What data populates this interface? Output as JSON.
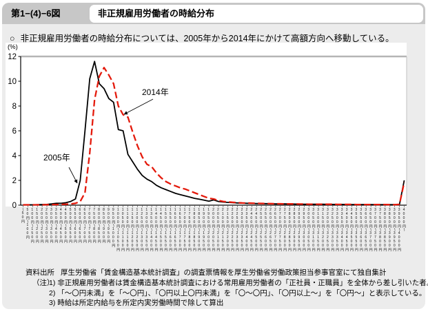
{
  "page": {
    "figure_number": "第1−(4)−6図",
    "title": "非正規雇用労働者の時給分布",
    "bullet_mark": "○",
    "summary_text": "非正規雇用労働者の時給分布については、2005年から2014年にかけて高額方向へ移動している。"
  },
  "chart_data": {
    "type": "line",
    "title": "非正規雇用労働者の時給分布",
    "ylabel": "(%)",
    "xlabel": "",
    "ylim": [
      0,
      12
    ],
    "yticks": [
      0,
      2,
      4,
      6,
      8,
      10,
      12
    ],
    "grid": "single gray line at y=12 only",
    "legend_position": "inline annotations with arrows",
    "categories": [
      "〜50円",
      "50円〜100円",
      "100円〜150円",
      "150円〜200円",
      "200円〜250円",
      "250円〜300円",
      "300円〜350円",
      "350円〜400円",
      "400円〜450円",
      "450円〜500円",
      "500円〜550円",
      "550円〜600円",
      "600円〜650円",
      "650円〜700円",
      "700円〜750円",
      "750円〜800円",
      "800円〜850円",
      "850円〜900円",
      "900円〜950円",
      "950円〜1000円",
      "1000円〜1050円",
      "1050円〜1100円",
      "1100円〜1150円",
      "1150円〜1200円",
      "1200円〜1250円",
      "1250円〜1300円",
      "1300円〜1350円",
      "1350円〜1400円",
      "1400円〜1450円",
      "1450円〜1500円",
      "1500円〜1550円",
      "1550円〜1600円",
      "1600円〜1650円",
      "1650円〜1700円",
      "1700円〜1750円",
      "1750円〜1800円",
      "1800円〜1850円",
      "1850円〜1900円",
      "1900円〜1950円",
      "1950円〜2000円",
      "2000円〜2050円",
      "2050円〜2100円",
      "2100円〜2150円",
      "2150円〜2200円",
      "2200円〜2250円",
      "2250円〜2300円",
      "2300円〜2350円",
      "2350円〜2400円",
      "2400円〜2450円",
      "2450円〜2500円",
      "2500円〜2550円",
      "2550円〜2600円",
      "2600円〜2650円",
      "2650円〜2700円",
      "2700円〜2750円",
      "2750円〜2800円",
      "2800円〜2850円",
      "2850円〜2900円",
      "2900円〜2950円",
      "2950円〜3000円",
      "3000円〜3050円",
      "3050円〜3100円",
      "3100円〜3150円",
      "3150円〜3200円",
      "3200円〜3250円",
      "3250円〜3300円",
      "3300円〜3350円",
      "3350円〜3400円",
      "3400円〜3450円",
      "3450円〜3500円",
      "3500円〜3550円",
      "3550円〜3600円",
      "3600円〜3650円",
      "3650円〜3700円",
      "3700円〜3750円",
      "3750円〜3800円",
      "3800円〜3850円",
      "3850円〜3900円",
      "3900円〜3950円",
      "3950円〜4000円",
      "4000円〜"
    ],
    "series": [
      {
        "name": "2005年",
        "color": "#000000",
        "style": "solid",
        "values": [
          0.03,
          0.03,
          0.03,
          0.04,
          0.05,
          0.06,
          0.1,
          0.15,
          0.15,
          0.2,
          0.3,
          0.5,
          2.0,
          6.0,
          10.2,
          11.6,
          9.8,
          9.4,
          8.6,
          8.3,
          6.1,
          6.0,
          4.1,
          3.5,
          2.9,
          2.4,
          2.1,
          1.9,
          1.6,
          1.4,
          1.25,
          1.1,
          0.95,
          0.85,
          0.75,
          0.65,
          0.55,
          0.48,
          0.4,
          0.32,
          0.42,
          0.3,
          0.25,
          0.22,
          0.2,
          0.18,
          0.16,
          0.15,
          0.14,
          0.13,
          0.12,
          0.12,
          0.11,
          0.1,
          0.1,
          0.1,
          0.09,
          0.09,
          0.08,
          0.08,
          0.08,
          0.07,
          0.07,
          0.07,
          0.06,
          0.06,
          0.06,
          0.06,
          0.05,
          0.05,
          0.05,
          0.05,
          0.05,
          0.05,
          0.04,
          0.04,
          0.04,
          0.04,
          0.04,
          0.05,
          2.0
        ]
      },
      {
        "name": "2014年",
        "color": "#e41a0c",
        "style": "dashed",
        "values": [
          0.03,
          0.03,
          0.03,
          0.03,
          0.03,
          0.04,
          0.05,
          0.05,
          0.06,
          0.08,
          0.1,
          0.15,
          0.3,
          1.0,
          4.2,
          8.5,
          10.4,
          11.1,
          10.5,
          9.8,
          8.0,
          7.3,
          7.1,
          5.9,
          4.8,
          3.9,
          3.3,
          3.1,
          2.6,
          2.2,
          1.9,
          1.7,
          1.55,
          1.4,
          1.3,
          1.15,
          1.0,
          0.85,
          0.7,
          0.55,
          0.5,
          0.38,
          0.3,
          0.26,
          0.23,
          0.2,
          0.18,
          0.17,
          0.16,
          0.15,
          0.14,
          0.13,
          0.12,
          0.11,
          0.11,
          0.1,
          0.1,
          0.1,
          0.09,
          0.09,
          0.08,
          0.08,
          0.08,
          0.07,
          0.07,
          0.07,
          0.06,
          0.06,
          0.06,
          0.06,
          0.05,
          0.05,
          0.05,
          0.05,
          0.05,
          0.05,
          0.05,
          0.04,
          0.04,
          0.06,
          1.85
        ]
      }
    ],
    "annotations": [
      {
        "text": "2005年",
        "points_to": "solid black line"
      },
      {
        "text": "2014年",
        "points_to": "red dashed line"
      }
    ]
  },
  "footer": {
    "source_label": "資料出所",
    "source_text": "厚生労働省「賃金構造基本統計調査」の調査票情報を厚生労働省労働政策担当参事官室にて独自集計",
    "notes_label": "（注）",
    "notes": [
      "1) 非正規雇用労働者は賃金構造基本統計調査における常用雇用労働者の「正社員・正職員」を全体から差し引いた者。",
      "2) 「〜〇円未満」を「〜〇円」、「〇円以上〇円未満」を「〇〜〇円」、「〇円以上〜」を「〇円〜」と表示している。",
      "3) 時給は所定内給与を所定内実労働時間で除して算出"
    ]
  },
  "colors": {
    "panel_bg": "#ececec",
    "header_band": "#c7c7c7",
    "title_box_bg": "#ffffff",
    "plot_bg": "#ffffff",
    "gridline": "#b5b5b5",
    "axis": "#000000",
    "series_2005": "#000000",
    "series_2014": "#e41a0c"
  }
}
